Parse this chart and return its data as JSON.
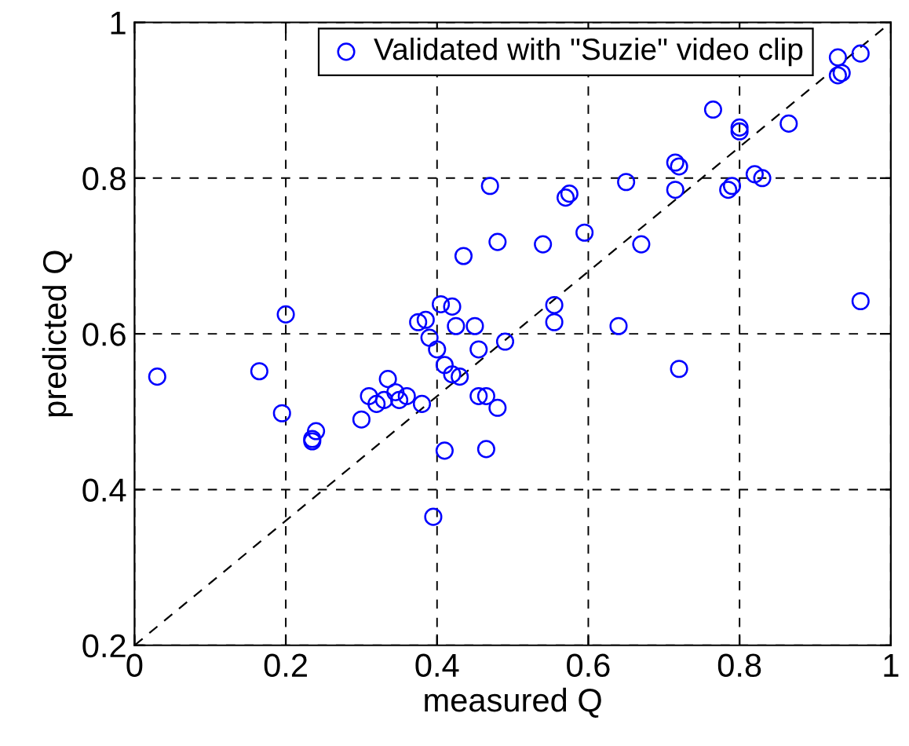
{
  "chart_data": {
    "type": "scatter",
    "xlabel": "measured Q",
    "ylabel": "predicted Q",
    "xlim": [
      0,
      1
    ],
    "ylim": [
      0.2,
      1
    ],
    "xticks": [
      0,
      {
        "value": 0.2,
        "label": "0.2"
      },
      {
        "value": 0.4,
        "label": "0.4"
      },
      {
        "value": 0.6,
        "label": "0.6"
      },
      {
        "value": 0.8,
        "label": "0.8"
      },
      1
    ],
    "yticks": [
      {
        "value": 0.2,
        "label": "0.2"
      },
      {
        "value": 0.4,
        "label": "0.4"
      },
      {
        "value": 0.6,
        "label": "0.6"
      },
      {
        "value": 0.8,
        "label": "0.8"
      },
      1
    ],
    "grid": true,
    "legend": "top right",
    "series": [
      {
        "name": "Validated with \"Suzie\" video clip",
        "color": "#0000ff",
        "marker": "circle",
        "x": [
          0.03,
          0.165,
          0.2,
          0.195,
          0.235,
          0.235,
          0.24,
          0.3,
          0.31,
          0.32,
          0.33,
          0.335,
          0.345,
          0.35,
          0.36,
          0.375,
          0.38,
          0.385,
          0.39,
          0.395,
          0.4,
          0.405,
          0.41,
          0.41,
          0.42,
          0.42,
          0.425,
          0.43,
          0.435,
          0.45,
          0.455,
          0.455,
          0.465,
          0.465,
          0.47,
          0.48,
          0.48,
          0.49,
          0.54,
          0.555,
          0.555,
          0.57,
          0.575,
          0.595,
          0.64,
          0.65,
          0.67,
          0.715,
          0.715,
          0.72,
          0.72,
          0.765,
          0.785,
          0.79,
          0.8,
          0.8,
          0.82,
          0.83,
          0.865,
          0.93,
          0.93,
          0.935,
          0.96,
          0.96
        ],
        "values": [
          0.545,
          0.552,
          0.625,
          0.498,
          0.462,
          0.465,
          0.475,
          0.49,
          0.52,
          0.51,
          0.515,
          0.542,
          0.525,
          0.515,
          0.52,
          0.615,
          0.51,
          0.618,
          0.595,
          0.365,
          0.58,
          0.638,
          0.45,
          0.56,
          0.635,
          0.548,
          0.61,
          0.545,
          0.7,
          0.61,
          0.58,
          0.52,
          0.52,
          0.452,
          0.79,
          0.505,
          0.718,
          0.59,
          0.715,
          0.615,
          0.637,
          0.775,
          0.78,
          0.73,
          0.61,
          0.795,
          0.715,
          0.785,
          0.82,
          0.815,
          0.555,
          0.888,
          0.785,
          0.79,
          0.86,
          0.865,
          0.805,
          0.8,
          0.87,
          0.955,
          0.932,
          0.935,
          0.96,
          0.642
        ]
      },
      {
        "type": "line",
        "line_style": "dashed",
        "color": "#000000",
        "x": [
          0,
          1
        ],
        "values": [
          0.2,
          1
        ]
      }
    ]
  }
}
